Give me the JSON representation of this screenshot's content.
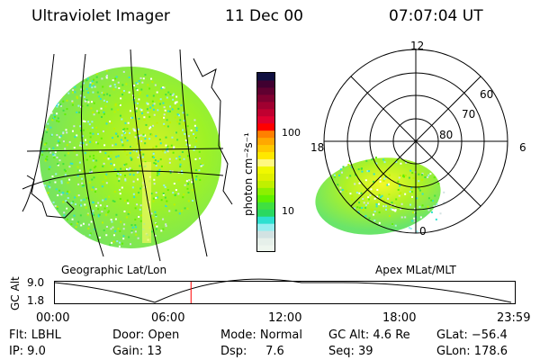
{
  "header": {
    "title": "Ultraviolet Imager",
    "date": "11 Dec 00",
    "time": "07:07:04 UT"
  },
  "colorbar": {
    "label": "photon cm⁻²s⁻¹",
    "ticks": [
      "100",
      "10"
    ],
    "colors": [
      "#eef6ee",
      "#e6f0ea",
      "#d2e2e2",
      "#96eef0",
      "#2ee0d0",
      "#2ad860",
      "#40e040",
      "#60f000",
      "#8cf000",
      "#c0f000",
      "#e0f000",
      "#f0f800",
      "#fff880",
      "#ffe800",
      "#ffc800",
      "#ffa800",
      "#ff8000",
      "#ff0000",
      "#e00030",
      "#c00030",
      "#a00030",
      "#800030",
      "#600030",
      "#400030",
      "#101040"
    ]
  },
  "left_panel": {
    "label": "Geographic Lat/Lon"
  },
  "polar": {
    "label": "Apex MLat/MLT",
    "mlt": [
      "12",
      "18",
      "6",
      "0"
    ],
    "lat": [
      "60",
      "70",
      "80"
    ]
  },
  "timeline": {
    "ylabel": "GC Alt",
    "yticks": [
      "9.0",
      "1.8"
    ],
    "xticks": [
      "00:00",
      "06:00",
      "12:00",
      "18:00",
      "23:59"
    ],
    "current_fraction": 0.296,
    "accent": "#ff0000"
  },
  "info": {
    "flt": "Flt: LBHL",
    "ip": "IP:  9.0",
    "door": "Door: Open",
    "gain": "Gain: 13",
    "mode": "Mode: Normal",
    "dsp": "Dsp:     7.6",
    "gcalt": "GC Alt: 4.6 Re",
    "seq": "Seq: 39",
    "glat": "GLat: −56.4",
    "glon": "GLon: 178.6"
  }
}
